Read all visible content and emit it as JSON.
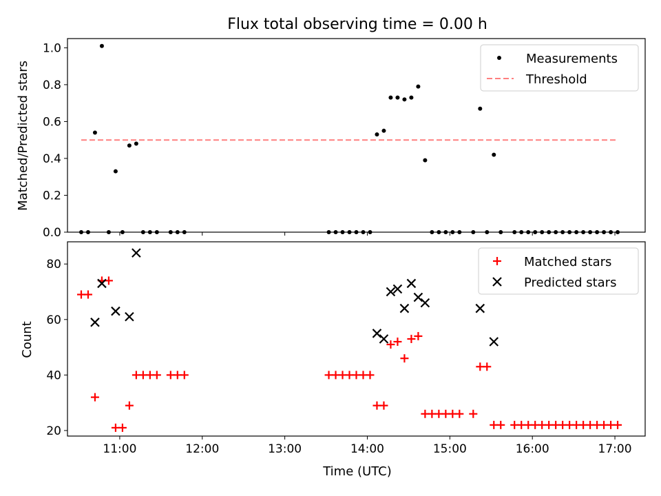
{
  "chart_data": [
    {
      "type": "scatter",
      "title": "Flux total observing time = 0.00 h",
      "xlabel": "",
      "ylabel": "Matched/Predicted stars",
      "ylim": [
        0.0,
        1.05
      ],
      "yticks": [
        "0.0",
        "0.2",
        "0.4",
        "0.6",
        "0.8",
        "1.0"
      ],
      "xlim": [
        "10:22",
        "17:22"
      ],
      "legend_position": "top-right",
      "legend": [
        "Measurements",
        "Threshold"
      ],
      "series": [
        {
          "name": "Measurements",
          "color": "#000000",
          "marker": "dot",
          "points": [
            [
              "10:32",
              0
            ],
            [
              "10:37",
              0
            ],
            [
              "10:42",
              0.54
            ],
            [
              "10:47",
              1.01
            ],
            [
              "10:52",
              0
            ],
            [
              "10:57",
              0.33
            ],
            [
              "11:02",
              0
            ],
            [
              "11:07",
              0.47
            ],
            [
              "11:12",
              0.48
            ],
            [
              "11:17",
              0
            ],
            [
              "11:22",
              0
            ],
            [
              "11:27",
              0
            ],
            [
              "11:37",
              0
            ],
            [
              "11:42",
              0
            ],
            [
              "11:47",
              0
            ],
            [
              "13:32",
              0
            ],
            [
              "13:37",
              0
            ],
            [
              "13:42",
              0
            ],
            [
              "13:47",
              0
            ],
            [
              "13:52",
              0
            ],
            [
              "13:57",
              0
            ],
            [
              "14:02",
              0
            ],
            [
              "14:07",
              0.53
            ],
            [
              "14:12",
              0.55
            ],
            [
              "14:17",
              0.73
            ],
            [
              "14:22",
              0.73
            ],
            [
              "14:27",
              0.72
            ],
            [
              "14:32",
              0.73
            ],
            [
              "14:37",
              0.79
            ],
            [
              "14:42",
              0.39
            ],
            [
              "14:47",
              0
            ],
            [
              "14:52",
              0
            ],
            [
              "14:57",
              0
            ],
            [
              "15:02",
              0
            ],
            [
              "15:07",
              0
            ],
            [
              "15:17",
              0
            ],
            [
              "15:22",
              0.67
            ],
            [
              "15:27",
              0
            ],
            [
              "15:32",
              0.42
            ],
            [
              "15:37",
              0
            ],
            [
              "15:47",
              0
            ],
            [
              "15:52",
              0
            ],
            [
              "15:57",
              0
            ],
            [
              "16:02",
              0
            ],
            [
              "16:07",
              0
            ],
            [
              "16:12",
              0
            ],
            [
              "16:17",
              0
            ],
            [
              "16:22",
              0
            ],
            [
              "16:27",
              0
            ],
            [
              "16:32",
              0
            ],
            [
              "16:37",
              0
            ],
            [
              "16:42",
              0
            ],
            [
              "16:47",
              0
            ],
            [
              "16:52",
              0
            ],
            [
              "16:57",
              0
            ],
            [
              "17:02",
              0
            ]
          ]
        },
        {
          "name": "Threshold",
          "color": "#ff7f7f",
          "style": "dashed",
          "points": [
            [
              "10:32",
              0.5
            ],
            [
              "17:02",
              0.5
            ]
          ]
        }
      ]
    },
    {
      "type": "scatter",
      "title": "",
      "xlabel": "Time (UTC)",
      "ylabel": "Count",
      "ylim": [
        18,
        88
      ],
      "yticks": [
        "20",
        "40",
        "60",
        "80"
      ],
      "xlim": [
        "10:22",
        "17:22"
      ],
      "xticks": [
        "11:00",
        "12:00",
        "13:00",
        "14:00",
        "15:00",
        "16:00",
        "17:00"
      ],
      "legend_position": "top-right",
      "legend": [
        "Matched stars",
        "Predicted stars"
      ],
      "series": [
        {
          "name": "Matched stars",
          "color": "#ff0000",
          "marker": "plus",
          "points": [
            [
              "10:32",
              69
            ],
            [
              "10:37",
              69
            ],
            [
              "10:42",
              32
            ],
            [
              "10:47",
              74
            ],
            [
              "10:52",
              74
            ],
            [
              "10:57",
              21
            ],
            [
              "11:02",
              21
            ],
            [
              "11:07",
              29
            ],
            [
              "11:12",
              40
            ],
            [
              "11:17",
              40
            ],
            [
              "11:22",
              40
            ],
            [
              "11:27",
              40
            ],
            [
              "11:37",
              40
            ],
            [
              "11:42",
              40
            ],
            [
              "11:47",
              40
            ],
            [
              "13:32",
              40
            ],
            [
              "13:37",
              40
            ],
            [
              "13:42",
              40
            ],
            [
              "13:47",
              40
            ],
            [
              "13:52",
              40
            ],
            [
              "13:57",
              40
            ],
            [
              "14:02",
              40
            ],
            [
              "14:07",
              29
            ],
            [
              "14:12",
              29
            ],
            [
              "14:17",
              51
            ],
            [
              "14:22",
              52
            ],
            [
              "14:27",
              46
            ],
            [
              "14:32",
              53
            ],
            [
              "14:37",
              54
            ],
            [
              "14:42",
              26
            ],
            [
              "14:47",
              26
            ],
            [
              "14:52",
              26
            ],
            [
              "14:57",
              26
            ],
            [
              "15:02",
              26
            ],
            [
              "15:07",
              26
            ],
            [
              "15:17",
              26
            ],
            [
              "15:22",
              43
            ],
            [
              "15:27",
              43
            ],
            [
              "15:32",
              22
            ],
            [
              "15:37",
              22
            ],
            [
              "15:47",
              22
            ],
            [
              "15:52",
              22
            ],
            [
              "15:57",
              22
            ],
            [
              "16:02",
              22
            ],
            [
              "16:07",
              22
            ],
            [
              "16:12",
              22
            ],
            [
              "16:17",
              22
            ],
            [
              "16:22",
              22
            ],
            [
              "16:27",
              22
            ],
            [
              "16:32",
              22
            ],
            [
              "16:37",
              22
            ],
            [
              "16:42",
              22
            ],
            [
              "16:47",
              22
            ],
            [
              "16:52",
              22
            ],
            [
              "16:57",
              22
            ],
            [
              "17:02",
              22
            ]
          ]
        },
        {
          "name": "Predicted stars",
          "color": "#000000",
          "marker": "x",
          "points": [
            [
              "10:42",
              59
            ],
            [
              "10:47",
              73
            ],
            [
              "10:57",
              63
            ],
            [
              "11:07",
              61
            ],
            [
              "11:12",
              84
            ],
            [
              "14:07",
              55
            ],
            [
              "14:12",
              53
            ],
            [
              "14:17",
              70
            ],
            [
              "14:22",
              71
            ],
            [
              "14:27",
              64
            ],
            [
              "14:32",
              73
            ],
            [
              "14:37",
              68
            ],
            [
              "14:42",
              66
            ],
            [
              "15:22",
              64
            ],
            [
              "15:32",
              52
            ]
          ]
        }
      ]
    }
  ]
}
